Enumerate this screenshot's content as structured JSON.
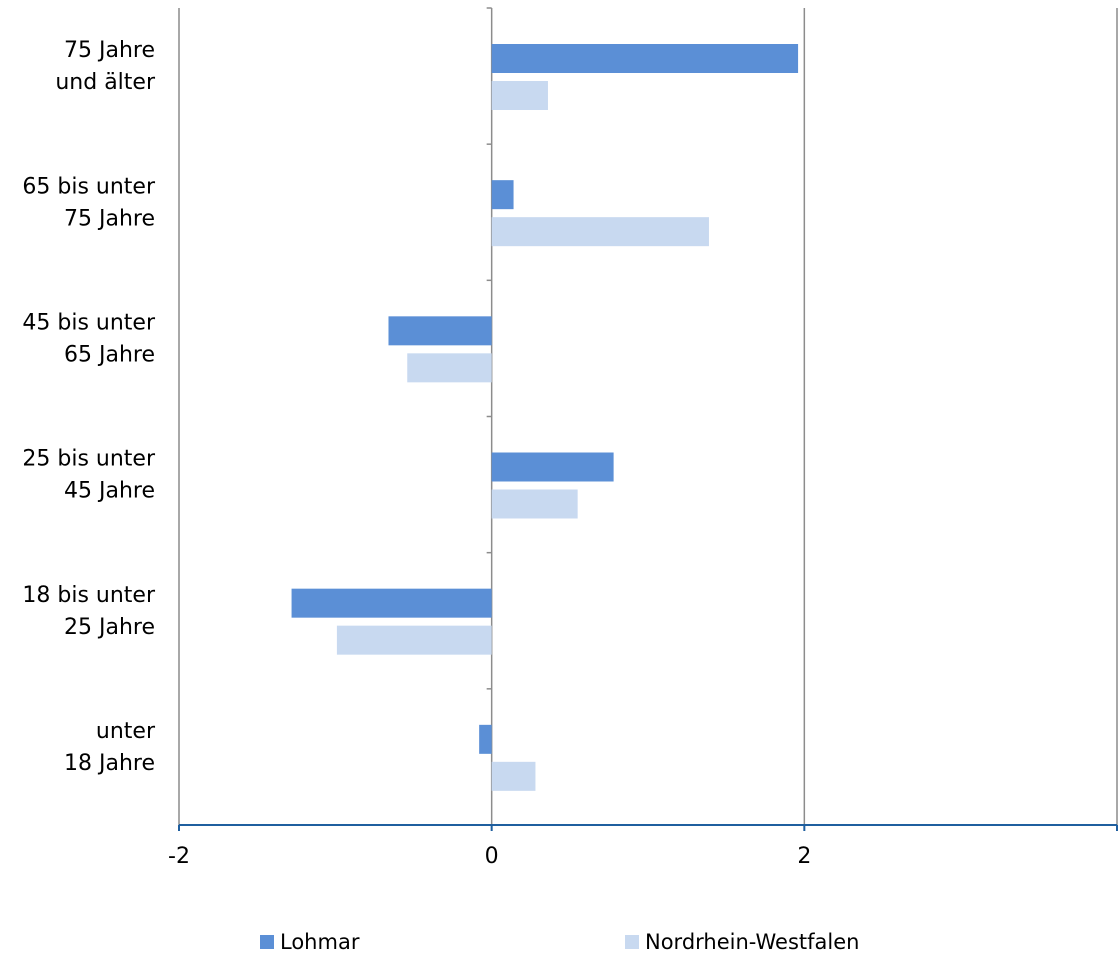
{
  "chart_data": {
    "type": "bar",
    "orientation": "horizontal",
    "categories": [
      [
        "75 Jahre",
        "und älter"
      ],
      [
        "65 bis unter",
        "75 Jahre"
      ],
      [
        "45 bis unter",
        "65 Jahre"
      ],
      [
        "25 bis unter",
        "45 Jahre"
      ],
      [
        "18 bis unter",
        "25 Jahre"
      ],
      [
        "unter",
        "18 Jahre"
      ]
    ],
    "series": [
      {
        "name": "Lohmar",
        "color": "#5b8fd6",
        "values": [
          1.96,
          0.14,
          -0.66,
          0.78,
          -1.28,
          -0.08
        ]
      },
      {
        "name": "Nordrhein-Westfalen",
        "color": "#c8d9f0",
        "values": [
          0.36,
          1.39,
          -0.54,
          0.55,
          -0.99,
          0.28
        ]
      }
    ],
    "xlim": [
      -2,
      4
    ],
    "xticks": [
      "-2",
      "0",
      "2",
      "4"
    ],
    "grid": "vertical major lines",
    "legend_position": "bottom"
  }
}
